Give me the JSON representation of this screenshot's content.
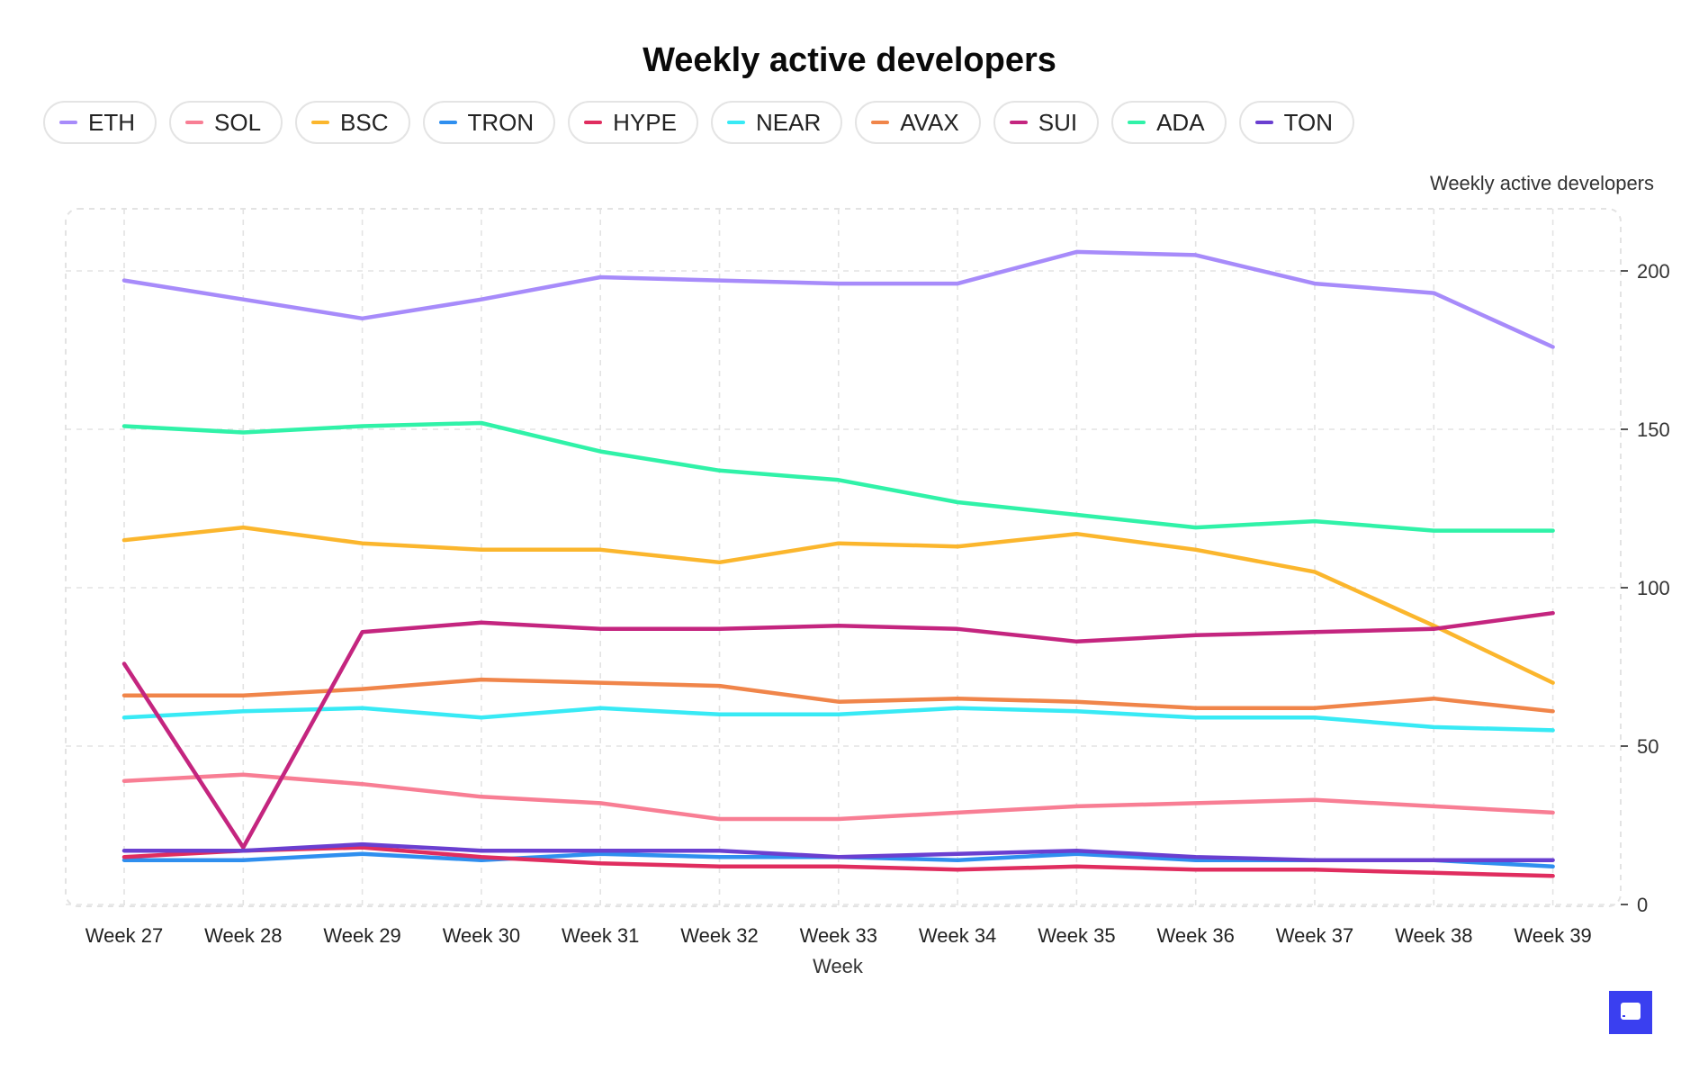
{
  "chart_data": {
    "type": "line",
    "title": "Weekly active developers",
    "xlabel": "Week",
    "ylabel": "Weekly active  developers",
    "ylim": [
      0,
      220
    ],
    "yticks": [
      "0",
      "50",
      "100",
      "150",
      "200"
    ],
    "grid": true,
    "legend_position": "top-left",
    "categories": [
      "Week 27",
      "Week 28",
      "Week 29",
      "Week 30",
      "Week 31",
      "Week 32",
      "Week 33",
      "Week 34",
      "Week 35",
      "Week 36",
      "Week 37",
      "Week 38",
      "Week 39"
    ],
    "series": [
      {
        "name": "ETH",
        "color": "#a78bfa",
        "values": [
          197,
          191,
          185,
          191,
          198,
          197,
          196,
          196,
          206,
          205,
          196,
          193,
          176
        ]
      },
      {
        "name": "SOL",
        "color": "#f87e94",
        "values": [
          39,
          41,
          38,
          34,
          32,
          27,
          27,
          29,
          31,
          32,
          33,
          31,
          29
        ]
      },
      {
        "name": "BSC",
        "color": "#fbb62d",
        "values": [
          115,
          119,
          114,
          112,
          112,
          108,
          114,
          113,
          117,
          112,
          105,
          88,
          70
        ]
      },
      {
        "name": "TRON",
        "color": "#2f8fef",
        "values": [
          14,
          14,
          16,
          14,
          16,
          15,
          15,
          14,
          16,
          14,
          14,
          14,
          12
        ]
      },
      {
        "name": "HYPE",
        "color": "#e02d5f",
        "values": [
          15,
          17,
          18,
          15,
          13,
          12,
          12,
          11,
          12,
          11,
          11,
          10,
          9
        ]
      },
      {
        "name": "NEAR",
        "color": "#38eaf5",
        "values": [
          59,
          61,
          62,
          59,
          62,
          60,
          60,
          62,
          61,
          59,
          59,
          56,
          55
        ]
      },
      {
        "name": "AVAX",
        "color": "#f0854a",
        "values": [
          66,
          66,
          68,
          71,
          70,
          69,
          64,
          65,
          64,
          62,
          62,
          65,
          61
        ]
      },
      {
        "name": "SUI",
        "color": "#c4257f",
        "values": [
          76,
          18,
          86,
          89,
          87,
          87,
          88,
          87,
          83,
          85,
          86,
          87,
          92
        ]
      },
      {
        "name": "ADA",
        "color": "#30f2a8",
        "values": [
          151,
          149,
          151,
          152,
          143,
          137,
          134,
          127,
          123,
          119,
          121,
          118,
          118
        ]
      },
      {
        "name": "TON",
        "color": "#6a3fd0",
        "values": [
          17,
          17,
          19,
          17,
          17,
          17,
          15,
          16,
          17,
          15,
          14,
          14,
          14
        ]
      }
    ]
  }
}
